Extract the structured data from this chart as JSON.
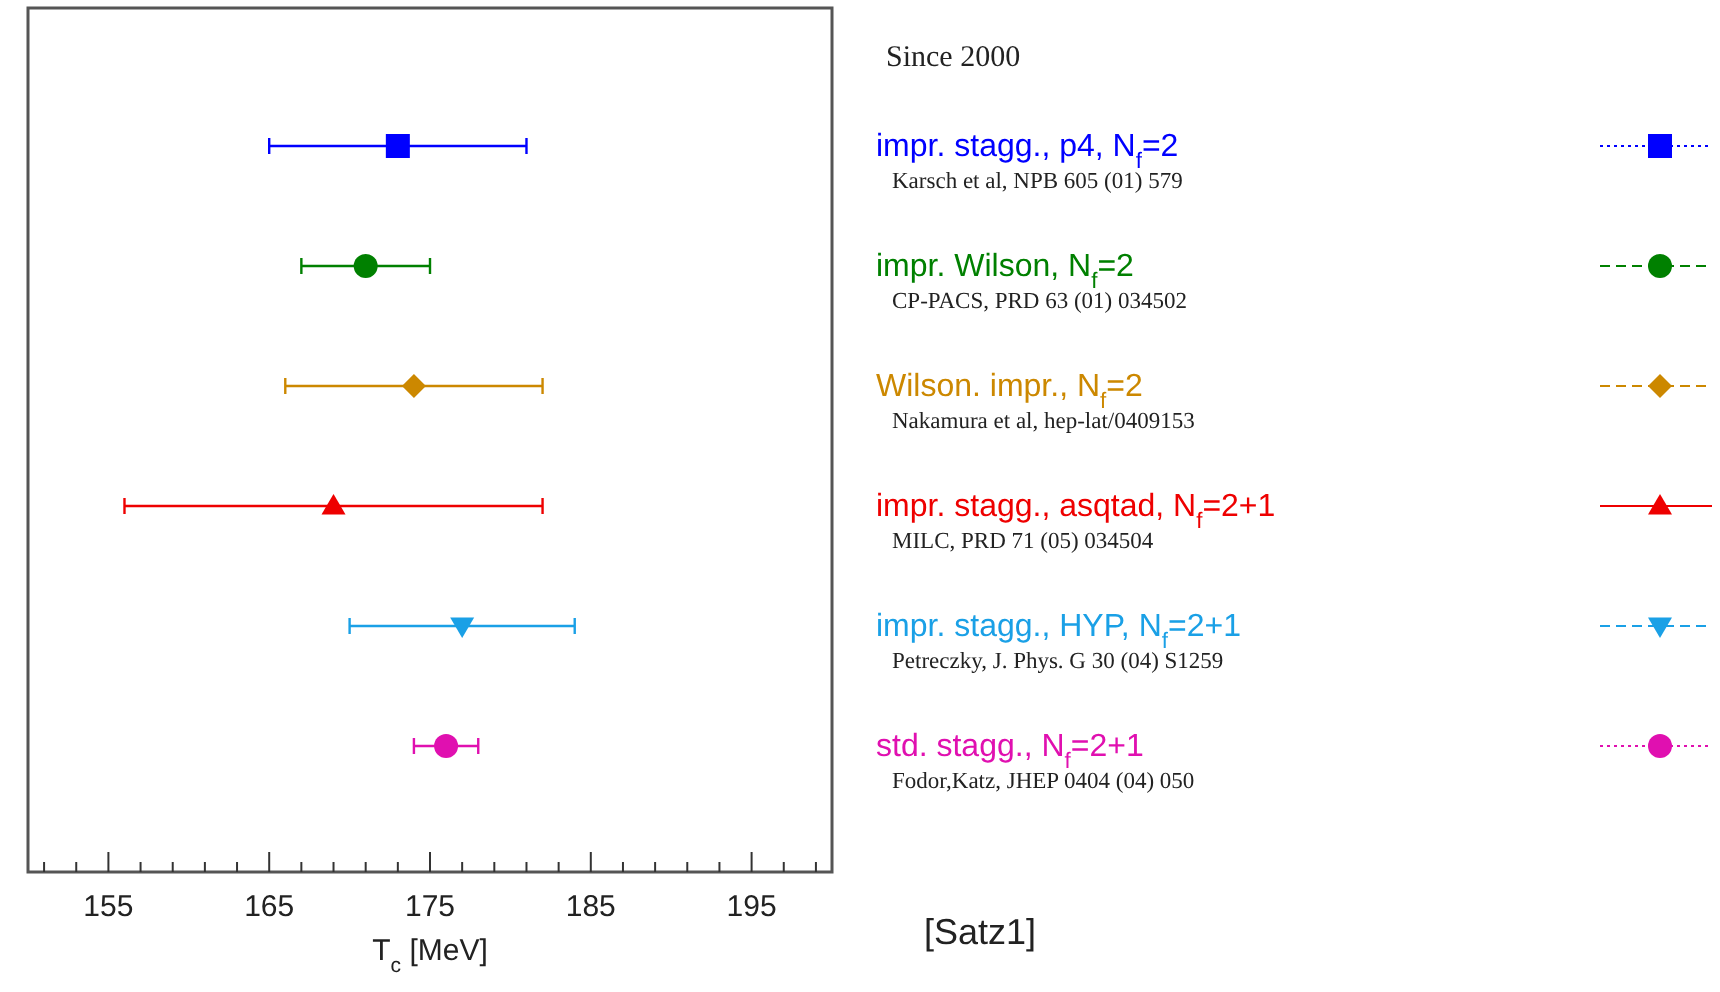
{
  "chart_data": {
    "type": "scatter",
    "orientation": "horizontal",
    "categories": [
      "impr. stagg., p4,  N$_{f}$=2",
      "impr. Wilson, N$_{f}$=2",
      "Wilson. impr., N$_{f}$=2",
      "impr. stagg., asqtad, N$_{f}$=2+1",
      "impr. stagg., HYP, N$_{f}$=2+1",
      "std. stagg., N$_{f}$=2+1"
    ],
    "xlim": [
      150,
      200
    ],
    "xticks": [
      {
        "value": 151,
        "label": null
      },
      {
        "value": 153,
        "label": null
      },
      155,
      {
        "value": 157,
        "label": null
      },
      {
        "value": 159,
        "label": null
      },
      {
        "value": 161,
        "label": null
      },
      {
        "value": 163,
        "label": null
      },
      165,
      {
        "value": 167,
        "label": null
      },
      {
        "value": 169,
        "label": null
      },
      {
        "value": 171,
        "label": null
      },
      {
        "value": 173,
        "label": null
      },
      175,
      {
        "value": 177,
        "label": null
      },
      {
        "value": 179,
        "label": null
      },
      {
        "value": 181,
        "label": null
      },
      {
        "value": 183,
        "label": null
      },
      185,
      {
        "value": 187,
        "label": null
      },
      {
        "value": 189,
        "label": null
      },
      {
        "value": 191,
        "label": null
      },
      {
        "value": 193,
        "label": null
      },
      195,
      {
        "value": 197,
        "label": null
      },
      {
        "value": 199,
        "label": null
      }
    ],
    "xlabel": "T$_{c}$ [MeV]",
    "grid": false,
    "series": [
      {
        "color": "#0000ff",
        "marker": "square",
        "line_style": "dotted",
        "values": [
          173,
          null,
          null,
          null,
          null,
          null
        ],
        "errors": [
          8,
          null,
          null,
          null,
          null,
          null
        ]
      },
      {
        "color": "#008000",
        "marker": "circle",
        "line_style": "dashed",
        "values": [
          null,
          171,
          null,
          null,
          null,
          null
        ],
        "errors": [
          null,
          4,
          null,
          null,
          null,
          null
        ]
      },
      {
        "color": "#cc8800",
        "marker": "diamond",
        "line_style": "dashed",
        "values": [
          null,
          null,
          174,
          null,
          null,
          null
        ],
        "errors": [
          null,
          null,
          8,
          null,
          null,
          null
        ]
      },
      {
        "color": "#ee0000",
        "marker": "triangle",
        "line_style": "solid",
        "values": [
          null,
          null,
          null,
          169,
          null,
          null
        ],
        "errors": [
          null,
          null,
          null,
          13,
          null,
          null
        ]
      },
      {
        "color": "#1aa0e6",
        "marker": "triangle-down",
        "line_style": "dashed",
        "values": [
          null,
          null,
          null,
          null,
          177,
          null
        ],
        "errors": [
          null,
          null,
          null,
          null,
          7,
          null
        ]
      },
      {
        "color": "#e010b0",
        "marker": "circle",
        "line_style": "dotted",
        "values": [
          null,
          null,
          null,
          null,
          null,
          176
        ],
        "errors": [
          null,
          null,
          null,
          null,
          null,
          2
        ]
      }
    ],
    "annotations": [
      "Since 2000",
      "Karsch et al, NPB 605 (01) 579",
      "CP-PACS, PRD 63 (01) 034502",
      "Nakamura et al, hep-lat/0409153",
      "MILC, PRD 71 (05) 034504",
      "Petreczky, J. Phys. G 30 (04) S1259",
      "Fodor,Katz, JHEP 0404 (04) 050",
      "[Satz1]"
    ]
  }
}
